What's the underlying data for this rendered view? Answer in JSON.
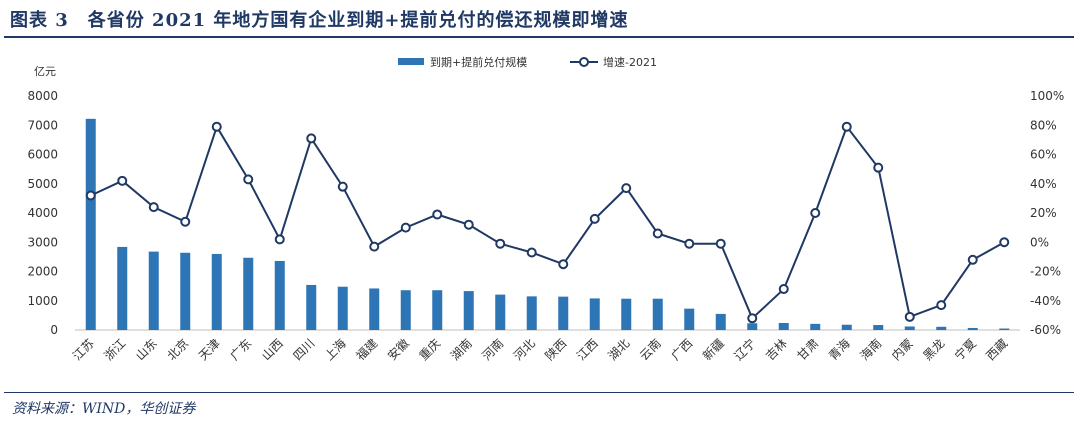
{
  "title": "图表 3　各省份 2021 年地方国有企业到期+提前兑付的偿还规模即增速",
  "source": "资料来源：WIND，华创证券",
  "colors": {
    "bar": "#2e75b6",
    "line": "#1f3864",
    "marker_fill": "#ffffff",
    "rule": "#1f3864"
  },
  "chart_data": {
    "type": "bar",
    "categories": [
      "江苏",
      "浙江",
      "山东",
      "北京",
      "天津",
      "广东",
      "山西",
      "四川",
      "上海",
      "福建",
      "安徽",
      "重庆",
      "湖南",
      "河南",
      "河北",
      "陕西",
      "江西",
      "湖北",
      "云南",
      "广西",
      "新疆",
      "辽宁",
      "吉林",
      "甘肃",
      "青海",
      "海南",
      "内蒙",
      "黑龙",
      "宁夏",
      "西藏"
    ],
    "series": [
      {
        "name": "到期+提前兑付规模",
        "type": "bar",
        "axis": "left",
        "values": [
          7220,
          2840,
          2680,
          2640,
          2600,
          2470,
          2360,
          1540,
          1480,
          1420,
          1360,
          1360,
          1330,
          1210,
          1150,
          1140,
          1080,
          1070,
          1070,
          730,
          550,
          230,
          240,
          210,
          180,
          170,
          120,
          110,
          70,
          50
        ]
      },
      {
        "name": "增速-2021",
        "type": "line",
        "axis": "right",
        "values": [
          32,
          42,
          24,
          14,
          79,
          43,
          2,
          71,
          38,
          -3,
          10,
          19,
          12,
          -1,
          -7,
          -15,
          16,
          37,
          6,
          -1,
          -1,
          -52,
          -32,
          20,
          79,
          51,
          -51,
          -43,
          -12,
          0
        ]
      }
    ],
    "y_left": {
      "unit": "亿元",
      "min": 0,
      "max": 8000,
      "ticks": [
        "0",
        "1000",
        "2000",
        "3000",
        "4000",
        "5000",
        "6000",
        "7000",
        "8000"
      ]
    },
    "y_right": {
      "min": -60,
      "max": 100,
      "ticks": [
        "-60%",
        "-40%",
        "-20%",
        "0%",
        "20%",
        "40%",
        "60%",
        "80%",
        "100%"
      ]
    },
    "legend_position": "top-center",
    "grid": false
  }
}
